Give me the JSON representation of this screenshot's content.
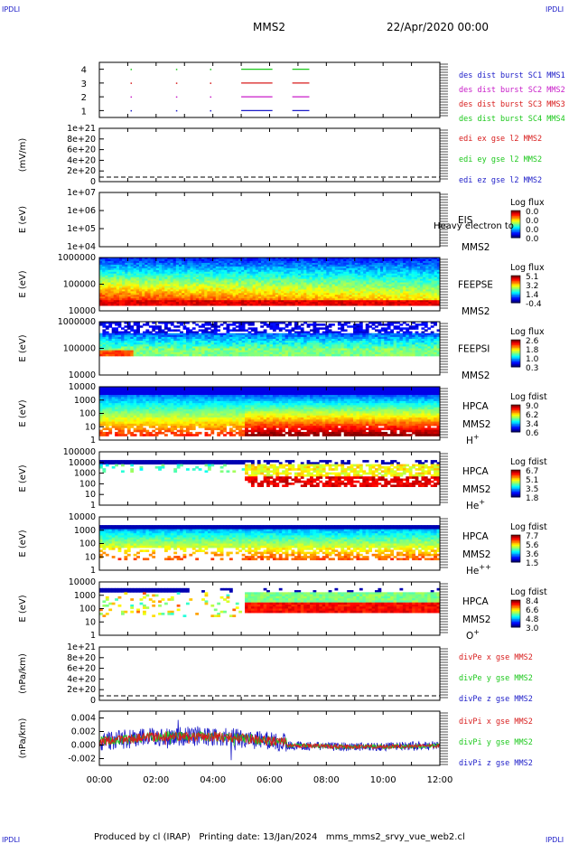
{
  "corners": {
    "tl": "IPDLI",
    "tr": "IPDLI",
    "bl": "IPDLI",
    "br": "IPDLI"
  },
  "header": {
    "mission": "MMS2",
    "date": "22/Apr/2020 00:00"
  },
  "footer": {
    "text": "Produced by cl (IRAP)   Printing date: 13/Jan/2024   mms_mms2_srvy_vue_web2.cl"
  },
  "colors": {
    "blue": "#1c1cc8",
    "red": "#d81c1c",
    "green": "#1cc81c",
    "magenta": "#c81cc8",
    "axis": "#000000"
  },
  "time_axis": {
    "labels": [
      "00:00",
      "02:00",
      "04:00",
      "06:00",
      "08:00",
      "10:00",
      "12:00"
    ],
    "hours": [
      0,
      2,
      4,
      6,
      8,
      10,
      12
    ]
  },
  "chart_data": [
    {
      "id": "burst",
      "type": "scatter",
      "title": "",
      "ylabel": "",
      "ylim": [
        0.5,
        4.5
      ],
      "yticks": [
        "4",
        "3",
        "2",
        "1"
      ],
      "series": [
        {
          "name": "des dist burst SC1 MMS1",
          "color": "#1c1cc8",
          "y": 1,
          "intervals": [
            [
              5.0,
              6.1
            ],
            [
              6.8,
              7.4
            ]
          ],
          "dots": [
            1.1,
            2.7,
            3.9
          ]
        },
        {
          "name": "des dist burst SC2 MMS2",
          "color": "#c81cc8",
          "y": 2,
          "intervals": [
            [
              5.0,
              6.1
            ],
            [
              6.8,
              7.4
            ]
          ],
          "dots": [
            1.1,
            2.7,
            3.9
          ]
        },
        {
          "name": "des dist burst SC3 MMS3",
          "color": "#d81c1c",
          "y": 3,
          "intervals": [
            [
              5.0,
              6.1
            ],
            [
              6.8,
              7.4
            ]
          ],
          "dots": [
            1.1,
            2.7,
            3.9
          ]
        },
        {
          "name": "des dist burst SC4 MMS4",
          "color": "#1cc81c",
          "y": 4,
          "intervals": [
            [
              5.0,
              6.1
            ],
            [
              6.8,
              7.4
            ]
          ],
          "dots": [
            1.1,
            2.7,
            3.9
          ]
        }
      ]
    },
    {
      "id": "edi",
      "type": "line",
      "ylabel": "(mV/m)",
      "yticks": [
        "1e+21",
        "8e+20",
        "6e+20",
        "4e+20",
        "2e+20",
        "0"
      ],
      "series": [
        {
          "name": "edi ex gse l2 MMS2",
          "color": "#d81c1c"
        },
        {
          "name": "edi ey gse l2 MMS2",
          "color": "#1cc81c"
        },
        {
          "name": "edi ez gse l2 MMS2",
          "color": "#1c1cc8"
        }
      ]
    },
    {
      "id": "eis",
      "type": "heatmap",
      "ylabel": "E (eV)",
      "yticks": [
        "1e+07",
        "1e+06",
        "1e+05",
        "1e+04"
      ],
      "instrument": "EIS",
      "sub": "MMS2",
      "overlay": "Heavy electron to",
      "colorbar": {
        "title": "Log flux",
        "ticks": [
          "0.0",
          "0.0",
          "0.0",
          "0.0"
        ]
      }
    },
    {
      "id": "feepse",
      "type": "heatmap",
      "ylabel": "E (eV)",
      "yticks": [
        "1000000",
        "100000",
        "10000"
      ],
      "instrument": "FEEPSE",
      "sub": "MMS2",
      "colorbar": {
        "title": "Log flux",
        "ticks": [
          "5.1",
          "3.2",
          "1.4",
          "-0.4"
        ]
      }
    },
    {
      "id": "feepsi",
      "type": "heatmap",
      "ylabel": "E (eV)",
      "yticks": [
        "1000000",
        "100000",
        "10000"
      ],
      "instrument": "FEEPSI",
      "sub": "MMS2",
      "colorbar": {
        "title": "Log flux",
        "ticks": [
          "2.6",
          "1.8",
          "1.0",
          "0.3"
        ]
      }
    },
    {
      "id": "hpca_h",
      "type": "heatmap",
      "ylabel": "E (eV)",
      "yticks": [
        "10000",
        "1000",
        "100",
        "10",
        "1"
      ],
      "instrument": "HPCA",
      "sub": "MMS2",
      "species": "H",
      "charge": "+",
      "colorbar": {
        "title": "Log fdist",
        "ticks": [
          "9.0",
          "6.2",
          "3.4",
          "0.6"
        ]
      }
    },
    {
      "id": "hpca_he1",
      "type": "heatmap",
      "ylabel": "E (eV)",
      "yticks": [
        "100000",
        "10000",
        "1000",
        "100",
        "10",
        "1"
      ],
      "instrument": "HPCA",
      "sub": "MMS2",
      "species": "He",
      "charge": "+",
      "colorbar": {
        "title": "Log fdist",
        "ticks": [
          "6.7",
          "5.1",
          "3.5",
          "1.8"
        ]
      }
    },
    {
      "id": "hpca_he2",
      "type": "heatmap",
      "ylabel": "E (eV)",
      "yticks": [
        "10000",
        "1000",
        "100",
        "10",
        "1"
      ],
      "instrument": "HPCA",
      "sub": "MMS2",
      "species": "He",
      "charge": "++",
      "colorbar": {
        "title": "Log fdist",
        "ticks": [
          "7.7",
          "5.6",
          "3.6",
          "1.5"
        ]
      }
    },
    {
      "id": "hpca_o",
      "type": "heatmap",
      "ylabel": "E (eV)",
      "yticks": [
        "10000",
        "1000",
        "100",
        "10",
        "1"
      ],
      "instrument": "HPCA",
      "sub": "MMS2",
      "species": "O",
      "charge": "+",
      "colorbar": {
        "title": "Log fdist",
        "ticks": [
          "8.4",
          "6.6",
          "4.8",
          "3.0"
        ]
      }
    },
    {
      "id": "divpe",
      "type": "line",
      "ylabel": "(nPa/km)",
      "yticks": [
        "1e+21",
        "8e+20",
        "6e+20",
        "4e+20",
        "2e+20",
        "0"
      ],
      "series": [
        {
          "name": "divPe x gse MMS2",
          "color": "#d81c1c"
        },
        {
          "name": "divPe y gse MMS2",
          "color": "#1cc81c"
        },
        {
          "name": "divPe z gse MMS2",
          "color": "#1c1cc8"
        }
      ]
    },
    {
      "id": "divpi",
      "type": "line",
      "ylabel": "(nPa/km)",
      "yticks": [
        "0.004",
        "0.002",
        "0.000",
        "-0.002"
      ],
      "ylim": [
        -0.003,
        0.005
      ],
      "series": [
        {
          "name": "divPi x gse MMS2",
          "color": "#d81c1c"
        },
        {
          "name": "divPi y gse MMS2",
          "color": "#1cc81c"
        },
        {
          "name": "divPi z gse MMS2",
          "color": "#1c1cc8"
        }
      ]
    }
  ]
}
